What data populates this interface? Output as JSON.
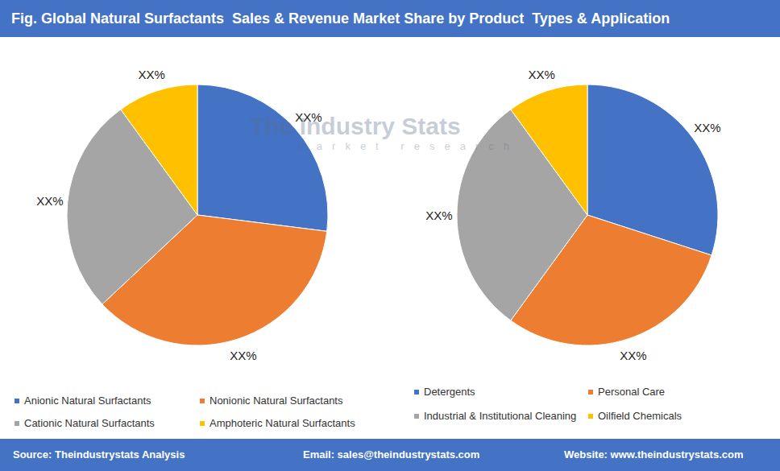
{
  "title": "Fig. Global Natural Surfactants  Sales & Revenue Market Share by Product  Types & Application",
  "watermark": {
    "name": "The Industry Stats",
    "tagline": "market research"
  },
  "footer": {
    "source": "Source: Theindustrystats Analysis",
    "email": "Email: sales@theindustrystats.com",
    "website": "Website: www.theindustrystats.com"
  },
  "chart_data": [
    {
      "type": "pie",
      "categories": [
        "Anionic Natural Surfactants",
        "Nonionic Natural Surfactants",
        "Cationic Natural Surfactants",
        "Amphoteric Natural Surfactants"
      ],
      "values": [
        27,
        36,
        27,
        10
      ],
      "value_labels": [
        "XX%",
        "XX%",
        "XX%",
        "XX%"
      ],
      "colors": [
        "#4472c4",
        "#ed7d31",
        "#a5a5a5",
        "#ffc000"
      ],
      "data_labels": true,
      "legend": "bottom"
    },
    {
      "type": "pie",
      "categories": [
        "Detergents",
        "Personal Care",
        "Industrial & Institutional Cleaning",
        "Oilfield Chemicals"
      ],
      "values": [
        30,
        30,
        30,
        10
      ],
      "value_labels": [
        "XX%",
        "XX%",
        "XX%",
        "XX%"
      ],
      "colors": [
        "#4472c4",
        "#ed7d31",
        "#a5a5a5",
        "#ffc000"
      ],
      "data_labels": true,
      "legend": "bottom"
    }
  ]
}
